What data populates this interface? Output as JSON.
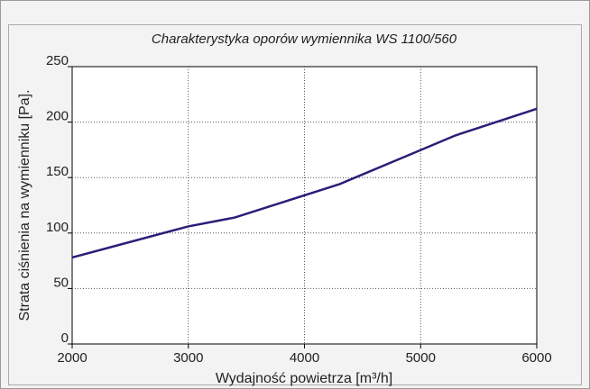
{
  "chart_data": {
    "type": "line",
    "title": "Charakterystyka oporów wymiennika WS 1100/560",
    "x_label": "Wydajność powietrza [m³/h]",
    "y_label": "Strata ciśnienia na wymienniku [Pa].",
    "x": [
      2000,
      3000,
      3400,
      4300,
      4800,
      5300,
      6000
    ],
    "series": [
      {
        "name": "WS 1100/560",
        "color": "#2b1d78",
        "values": [
          78,
          106,
          114,
          144,
          166,
          188,
          212
        ]
      }
    ],
    "xlim": [
      2000,
      6000
    ],
    "xticks": [
      2000,
      3000,
      4000,
      5000,
      6000
    ],
    "ylim": [
      0,
      250
    ],
    "yticks": [
      0,
      50,
      100,
      150,
      200,
      250
    ],
    "grid": true
  }
}
